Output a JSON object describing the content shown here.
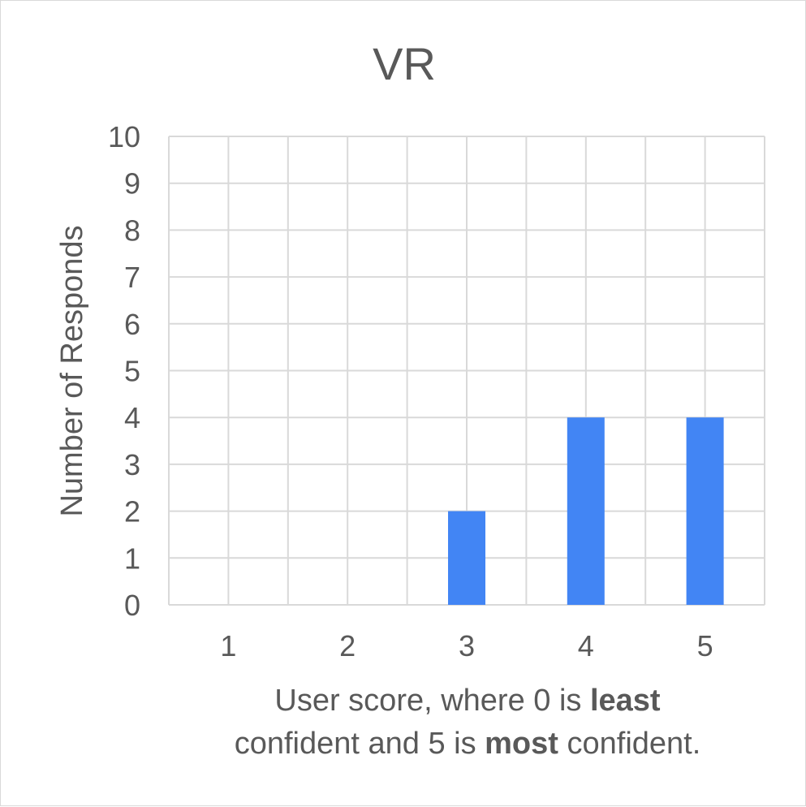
{
  "chart_data": {
    "type": "bar",
    "title": "VR",
    "ylabel": "Number of Responds",
    "xlabel": {
      "line1_before": "User score, where 0 is ",
      "line1_bold": "least",
      "line2_before": "confident and 5 is ",
      "line2_bold": "most",
      "line2_after": " confident."
    },
    "categories": [
      "1",
      "2",
      "3",
      "4",
      "5"
    ],
    "values": [
      0,
      0,
      2,
      4,
      4
    ],
    "ylim": [
      0,
      10
    ],
    "yticks": [
      0,
      1,
      2,
      3,
      4,
      5,
      6,
      7,
      8,
      9,
      10
    ],
    "grid": true,
    "legend": "none",
    "colors": {
      "bar": "#4285f4",
      "grid": "#d9d9d9",
      "text": "#595959",
      "frame": "#d9d9d9"
    }
  }
}
